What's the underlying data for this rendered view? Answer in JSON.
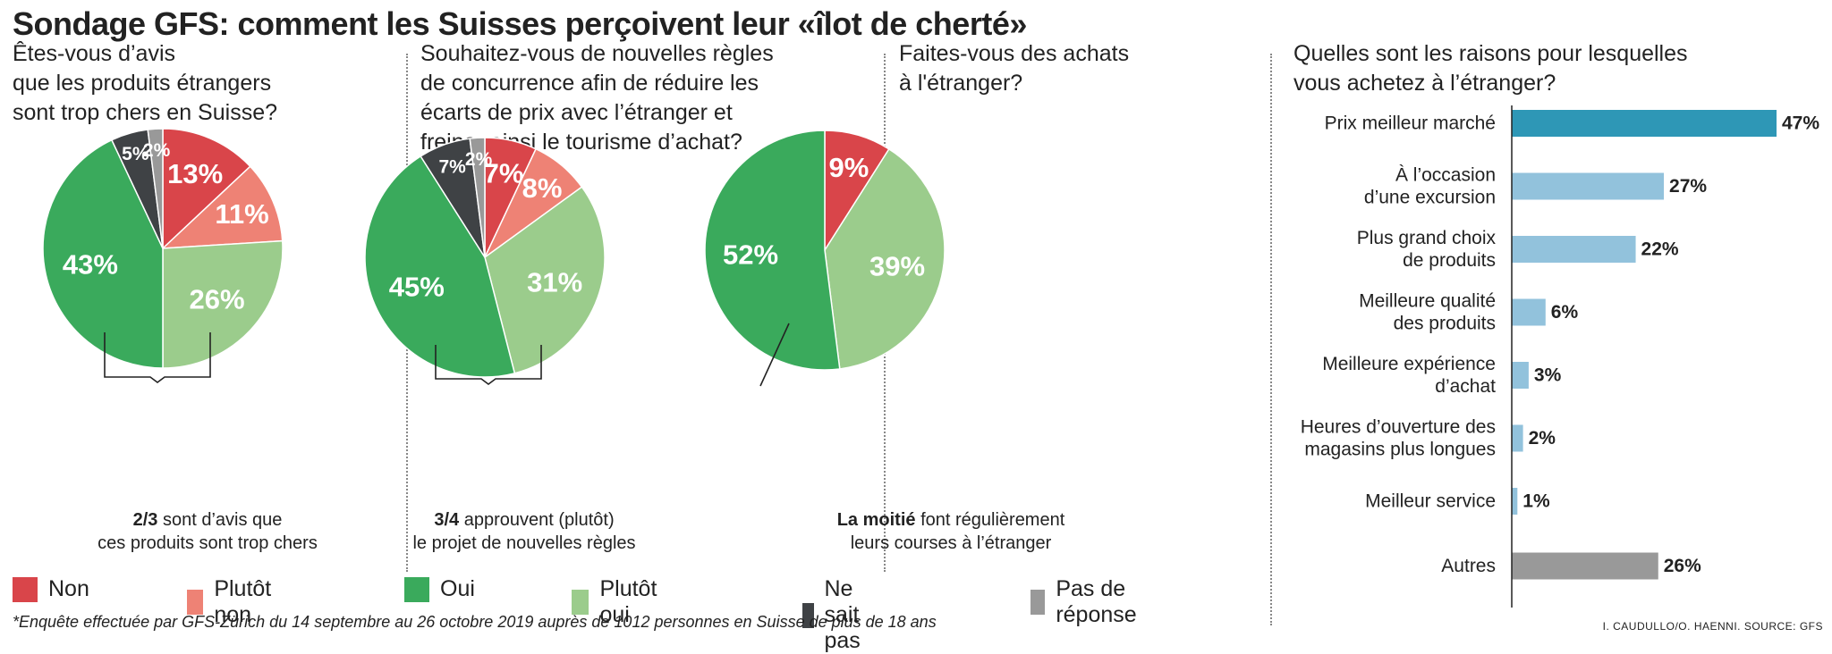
{
  "title": "Sondage GFS: comment les Suisses perçoivent leur «îlot de cherté»",
  "colors": {
    "non": "#d9454a",
    "plutot_non": "#ee8275",
    "oui": "#3aaa5c",
    "plutot_oui": "#9bcc8c",
    "ne_sait_pas": "#3f4245",
    "pas_de_reponse": "#999999",
    "bar_highlight": "#2e97b6",
    "bar_light": "#92c2dc",
    "bar_grey": "#999999"
  },
  "legend": [
    {
      "label": "Non",
      "color_key": "non"
    },
    {
      "label": "Plutôt non",
      "color_key": "plutot_non"
    },
    {
      "label": "Oui",
      "color_key": "oui"
    },
    {
      "label": "Plutôt oui",
      "color_key": "plutot_oui"
    },
    {
      "label": "Ne sait pas",
      "color_key": "ne_sait_pas"
    },
    {
      "label": "Pas de réponse",
      "color_key": "pas_de_reponse"
    }
  ],
  "footnote": "*Enquête effectuée par GFS-Zürich du 14 septembre au 26 octobre 2019 auprès de 1012 personnes en Suisse de plus de 18 ans",
  "credit": "I. CAUDULLO/O. HAENNI. SOURCE: GFS",
  "chart_data": [
    {
      "type": "pie",
      "title": [
        "Êtes-vous d’avis",
        "que les produits étrangers",
        "sont trop chers en Suisse?"
      ],
      "slices": [
        {
          "category": "Non",
          "value": 13,
          "label": "13%",
          "color_key": "non"
        },
        {
          "category": "Plutôt non",
          "value": 11,
          "label": "11%",
          "color_key": "plutot_non"
        },
        {
          "category": "Plutôt oui",
          "value": 26,
          "label": "26%",
          "color_key": "plutot_oui"
        },
        {
          "category": "Oui",
          "value": 43,
          "label": "43%",
          "color_key": "oui"
        },
        {
          "category": "Ne sait pas",
          "value": 5,
          "label": "5%",
          "color_key": "ne_sait_pas"
        },
        {
          "category": "Pas de réponse",
          "value": 2,
          "label": "2%",
          "color_key": "pas_de_reponse"
        }
      ],
      "annotation": {
        "bold": "2/3",
        "text": " sont d’avis que",
        "line2": "ces produits sont trop chers"
      }
    },
    {
      "type": "pie",
      "title": [
        "Souhaitez-vous de nouvelles règles",
        "de concurrence afin de réduire les",
        "écarts de prix avec l’étranger et",
        "freiner ainsi le tourisme d’achat?"
      ],
      "slices": [
        {
          "category": "Non",
          "value": 7,
          "label": "7%",
          "color_key": "non"
        },
        {
          "category": "Plutôt non",
          "value": 8,
          "label": "8%",
          "color_key": "plutot_non"
        },
        {
          "category": "Plutôt oui",
          "value": 31,
          "label": "31%",
          "color_key": "plutot_oui"
        },
        {
          "category": "Oui",
          "value": 45,
          "label": "45%",
          "color_key": "oui"
        },
        {
          "category": "Ne sait pas",
          "value": 7,
          "label": "7%",
          "color_key": "ne_sait_pas"
        },
        {
          "category": "Pas de réponse",
          "value": 2,
          "label": "2%",
          "color_key": "pas_de_reponse"
        }
      ],
      "annotation": {
        "bold": "3/4",
        "text": " approuvent (plutôt)",
        "line2": "le projet de nouvelles règles"
      }
    },
    {
      "type": "pie",
      "title": [
        "Faites-vous des achats",
        "à l'étranger?"
      ],
      "slices": [
        {
          "category": "Non",
          "value": 9,
          "label": "9%",
          "color_key": "non"
        },
        {
          "category": "Plutôt oui",
          "value": 39,
          "label": "39%",
          "color_key": "plutot_oui"
        },
        {
          "category": "Oui",
          "value": 52,
          "label": "52%",
          "color_key": "oui"
        }
      ],
      "annotation": {
        "bold": "La moitié",
        "text": " font régulièrement",
        "line2": "leurs courses à l’étranger"
      }
    },
    {
      "type": "bar",
      "orientation": "horizontal",
      "title": [
        "Quelles sont les raisons pour lesquelles",
        "vous achetez à l’étranger?"
      ],
      "categories": [
        [
          "Prix meilleur marché"
        ],
        [
          "À l’occasion",
          "d’une excursion"
        ],
        [
          "Plus grand choix",
          "de produits"
        ],
        [
          "Meilleure qualité",
          "des produits"
        ],
        [
          "Meilleure expérience",
          "d’achat"
        ],
        [
          "Heures d’ouverture des",
          "magasins plus longues"
        ],
        [
          "Meilleur service"
        ],
        [
          "Autres"
        ]
      ],
      "values": [
        47,
        27,
        22,
        6,
        3,
        2,
        1,
        26
      ],
      "value_labels": [
        "47%",
        "27%",
        "22%",
        "6%",
        "3%",
        "2%",
        "1%",
        "26%"
      ],
      "bar_color_keys": [
        "bar_highlight",
        "bar_light",
        "bar_light",
        "bar_light",
        "bar_light",
        "bar_light",
        "bar_light",
        "bar_grey"
      ],
      "xlim": [
        0,
        47
      ]
    }
  ]
}
